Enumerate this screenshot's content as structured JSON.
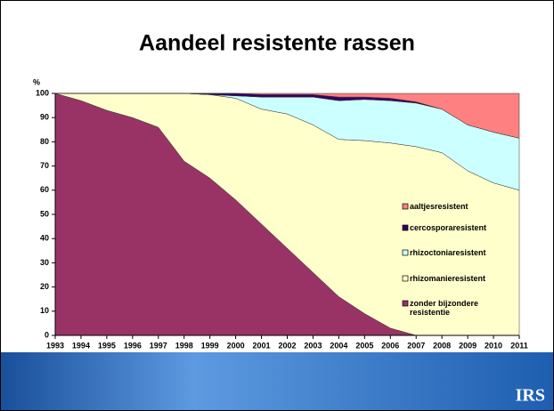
{
  "chart_data": {
    "type": "stacked_area",
    "title": "Aandeel resistente rassen",
    "y_label": "%",
    "logo": "IRS",
    "categories": [
      "1993",
      "1994",
      "1995",
      "1996",
      "1997",
      "1998",
      "1999",
      "2000",
      "2001",
      "2002",
      "2003",
      "2004",
      "2005",
      "2006",
      "2007",
      "2008",
      "2009",
      "2010",
      "2011"
    ],
    "series": [
      {
        "name": "zonder bijzondere resistentie",
        "color": "#993366",
        "values": [
          100,
          97,
          93,
          90,
          86,
          72,
          65,
          56,
          46,
          36,
          26,
          16,
          9,
          3,
          0,
          0,
          0,
          0,
          0
        ]
      },
      {
        "name": "rhizomanieresistent",
        "color": "#FFFFCC",
        "values": [
          0,
          3,
          7,
          10,
          14,
          28,
          34.5,
          42,
          47.5,
          55.5,
          61,
          65,
          71.5,
          76.5,
          78,
          75.5,
          68,
          63,
          60
        ]
      },
      {
        "name": "rhizoctoniaresistent",
        "color": "#CCFFFF",
        "values": [
          0,
          0,
          0,
          0,
          0,
          0,
          0,
          1,
          5,
          7,
          11.5,
          16,
          17,
          17.5,
          18,
          18,
          19,
          21,
          21.5
        ]
      },
      {
        "name": "cercosporaresistent",
        "color": "#330066",
        "values": [
          0,
          0,
          0,
          0,
          0,
          0,
          0.5,
          1,
          1,
          1,
          1,
          1.5,
          1,
          1,
          0.5,
          0,
          0,
          0,
          0
        ]
      },
      {
        "name": "aaltjesresistent",
        "color": "#FF8080",
        "values": [
          0,
          0,
          0,
          0,
          0,
          0,
          0,
          0,
          0.5,
          0.5,
          0.5,
          1.5,
          1.5,
          2,
          3.5,
          6.5,
          13,
          16,
          18.5
        ]
      }
    ],
    "ylim": [
      0,
      100
    ],
    "yticks": [
      0,
      10,
      20,
      30,
      40,
      50,
      60,
      70,
      80,
      90,
      100
    ]
  }
}
